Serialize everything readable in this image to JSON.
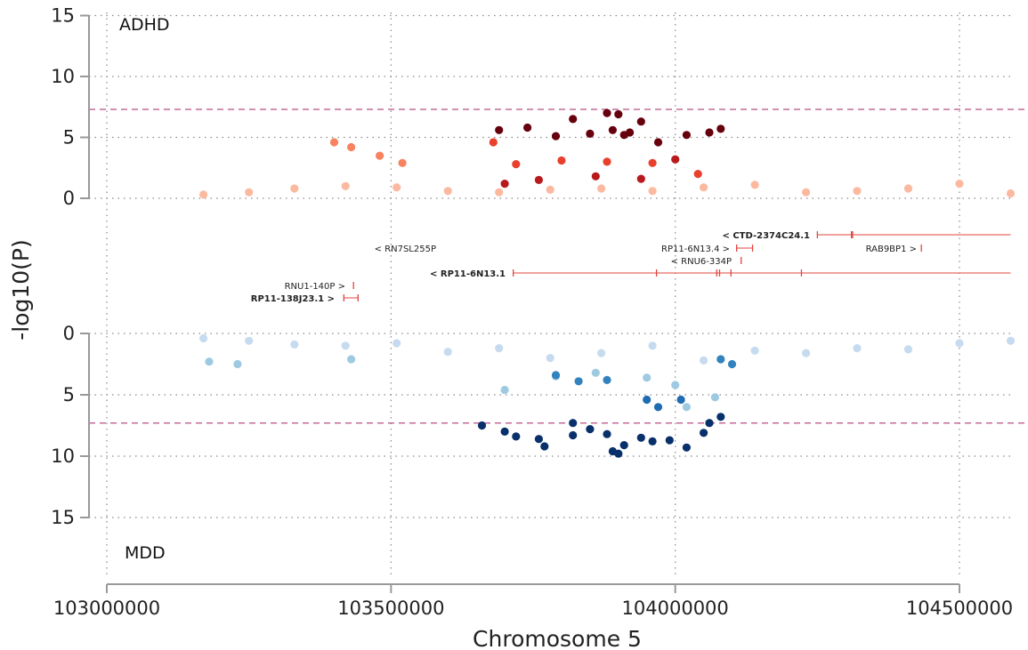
{
  "chart_data": {
    "type": "scatter",
    "xlabel": "Chromosome 5",
    "ylabel": "-log10(P)",
    "xlim": [
      102995000,
      104610000
    ],
    "x_ticks": [
      103000000,
      103500000,
      104000000,
      104500000
    ],
    "top_panel": {
      "label": "ADHD",
      "ylim": [
        0,
        15
      ],
      "y_ticks": [
        0,
        5,
        10,
        15
      ],
      "significance_line": 7.3,
      "color_levels": [
        "#fbb9a0",
        "#f7825f",
        "#e8402c",
        "#b81a1c",
        "#67000d"
      ],
      "series": [
        {
          "x": [
            103170000,
            103250000,
            103330000,
            103420000,
            103510000,
            103600000,
            103690000,
            103780000,
            103870000,
            103960000,
            104050000,
            104140000,
            104230000,
            104320000,
            104410000,
            104500000,
            104590000
          ],
          "y": [
            0.3,
            0.5,
            0.8,
            1.0,
            0.9,
            0.6,
            0.5,
            0.7,
            0.8,
            0.6,
            0.9,
            1.1,
            0.5,
            0.6,
            0.8,
            1.2,
            0.4
          ]
        },
        {
          "x": [
            103400000,
            103430000,
            103480000,
            103520000
          ],
          "y": [
            4.6,
            4.2,
            3.5,
            2.9
          ]
        },
        {
          "x": [
            103680000,
            103720000,
            103800000,
            103880000,
            103960000,
            104040000
          ],
          "y": [
            4.6,
            2.8,
            3.1,
            3.0,
            2.9,
            2.0
          ]
        },
        {
          "x": [
            103700000,
            103760000,
            103860000,
            103940000,
            104000000
          ],
          "y": [
            1.2,
            1.5,
            1.8,
            1.6,
            3.2
          ]
        },
        {
          "x": [
            103690000,
            103740000,
            103790000,
            103850000,
            103910000,
            103970000,
            104020000,
            104060000
          ],
          "y": [
            5.6,
            5.8,
            5.1,
            5.3,
            5.2,
            4.6,
            5.2,
            5.4
          ]
        },
        {
          "x": [
            103890000,
            103920000,
            103940000,
            104080000
          ],
          "y": [
            5.6,
            5.4,
            6.3,
            5.7
          ]
        },
        {
          "x": [
            103820000,
            103880000,
            103900000
          ],
          "y": [
            6.5,
            7.0,
            6.9
          ]
        }
      ]
    },
    "bottom_panel": {
      "label": "MDD",
      "ylim": [
        0,
        15
      ],
      "y_ticks": [
        0,
        5,
        10,
        15
      ],
      "significance_line": 7.3,
      "color_levels": [
        "#c6dbef",
        "#9ecae1",
        "#3182bd",
        "#1f6cb0",
        "#08306b"
      ],
      "series": [
        {
          "x": [
            103170000,
            103250000,
            103330000,
            103420000,
            103510000,
            103600000,
            103690000,
            103780000,
            103870000,
            103960000,
            104050000,
            104140000,
            104230000,
            104320000,
            104410000,
            104500000,
            104590000
          ],
          "y": [
            0.4,
            0.6,
            0.9,
            1.0,
            0.8,
            1.5,
            1.2,
            2.0,
            1.6,
            1.0,
            2.2,
            1.4,
            1.6,
            1.2,
            1.3,
            0.8,
            0.6
          ]
        },
        {
          "x": [
            103180000,
            103230000,
            103430000,
            103700000,
            103790000,
            103860000,
            103950000,
            104000000,
            104020000,
            104070000
          ],
          "y": [
            2.3,
            2.5,
            2.1,
            4.6,
            3.5,
            3.2,
            3.6,
            4.2,
            6.0,
            5.2
          ]
        },
        {
          "x": [
            103790000,
            103830000,
            103880000,
            104080000,
            104100000
          ],
          "y": [
            3.4,
            3.9,
            3.8,
            2.1,
            2.5
          ]
        },
        {
          "x": [
            103950000,
            103970000,
            104010000
          ],
          "y": [
            5.4,
            6.0,
            5.4
          ]
        },
        {
          "x": [
            103660000,
            103700000,
            103760000,
            103820000,
            103880000,
            103940000,
            103990000,
            104050000,
            104080000
          ],
          "y": [
            7.5,
            8.0,
            8.6,
            7.3,
            8.2,
            8.5,
            8.7,
            8.1,
            6.8
          ]
        },
        {
          "x": [
            103720000,
            103770000,
            103850000,
            103910000,
            103960000,
            104020000
          ],
          "y": [
            8.4,
            9.2,
            7.8,
            9.1,
            8.8,
            9.3
          ]
        },
        {
          "x": [
            103820000,
            103890000,
            103900000,
            104060000
          ],
          "y": [
            8.3,
            9.6,
            9.8,
            7.3
          ]
        }
      ]
    },
    "genes": [
      {
        "name": "< CTD-2374C24.1",
        "bold": true,
        "start": 104250000,
        "end": 104590000,
        "exons": [
          104250000,
          104310000,
          104312000
        ]
      },
      {
        "name": "RAB9BP1 >",
        "bold": false,
        "start": 104432000,
        "end": 104434000,
        "exons": [
          104433000
        ]
      },
      {
        "name": "< RN7SL255P",
        "bold": false,
        "start": null,
        "end": null,
        "exons": []
      },
      {
        "name": "RP11-6N13.4 >",
        "bold": false,
        "start": 104108000,
        "end": 104136000,
        "exons": [
          104108000,
          104136000
        ]
      },
      {
        "name": "< RNU6-334P",
        "bold": false,
        "start": 104115000,
        "end": 104117000,
        "exons": [
          104116000
        ]
      },
      {
        "name": "< RP11-6N13.1",
        "bold": true,
        "start": 103715000,
        "end": 104590000,
        "exons": [
          103715000,
          103967000,
          104073000,
          104078000,
          104098000,
          104222000
        ]
      },
      {
        "name": "RNU1-140P >",
        "bold": false,
        "start": 103433000,
        "end": 103435000,
        "exons": [
          103434000
        ]
      },
      {
        "name": "RP11-138J23.1 >",
        "bold": true,
        "start": 103417000,
        "end": 103442000,
        "exons": [
          103417000,
          103442000
        ]
      }
    ]
  }
}
